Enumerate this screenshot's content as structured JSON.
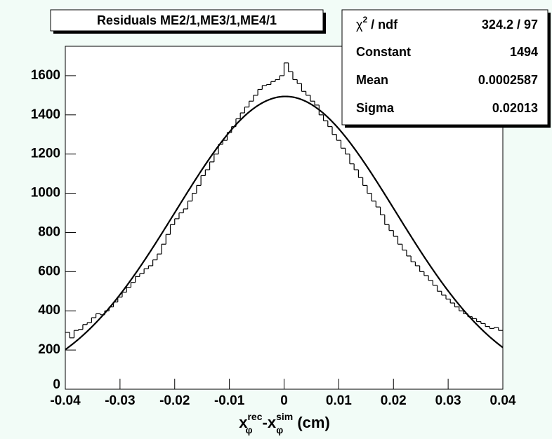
{
  "chart_data": {
    "type": "histogram",
    "title": "Residuals ME2/1,ME3/1,ME4/1",
    "x_label": {
      "main": "x",
      "sup1": "rec",
      "sub1": "φ",
      "mid": "-x",
      "sup2": "sim",
      "sub2": "φ",
      "unit": " (cm)"
    },
    "bins": [
      -0.04,
      -0.0392,
      -0.0384,
      -0.0376,
      -0.0368,
      -0.036,
      -0.0352,
      -0.0344,
      -0.0336,
      -0.0328,
      -0.032,
      -0.0312,
      -0.0304,
      -0.0296,
      -0.0288,
      -0.028,
      -0.0272,
      -0.0264,
      -0.0256,
      -0.0248,
      -0.024,
      -0.0232,
      -0.0224,
      -0.0216,
      -0.0208,
      -0.02,
      -0.0192,
      -0.0184,
      -0.0176,
      -0.0168,
      -0.016,
      -0.0152,
      -0.0144,
      -0.0136,
      -0.0128,
      -0.012,
      -0.0112,
      -0.0104,
      -0.0096,
      -0.0088,
      -0.008,
      -0.0072,
      -0.0064,
      -0.0056,
      -0.0048,
      -0.004,
      -0.0032,
      -0.0024,
      -0.0016,
      -0.0008,
      0,
      0.0008,
      0.0016,
      0.0024,
      0.0032,
      0.004,
      0.0048,
      0.0056,
      0.0064,
      0.0072,
      0.008,
      0.0088,
      0.0096,
      0.0104,
      0.0112,
      0.012,
      0.0128,
      0.0136,
      0.0144,
      0.0152,
      0.016,
      0.0168,
      0.0176,
      0.0184,
      0.0192,
      0.02,
      0.0208,
      0.0216,
      0.0224,
      0.0232,
      0.024,
      0.0248,
      0.0256,
      0.0264,
      0.0272,
      0.028,
      0.0288,
      0.0296,
      0.0304,
      0.0312,
      0.032,
      0.0328,
      0.0336,
      0.0344,
      0.0352,
      0.036,
      0.0368,
      0.0376,
      0.0384,
      0.0392,
      0.04
    ],
    "values": [
      290,
      262,
      300,
      305,
      330,
      340,
      365,
      385,
      380,
      400,
      420,
      445,
      470,
      495,
      520,
      545,
      575,
      590,
      615,
      630,
      660,
      690,
      740,
      790,
      840,
      870,
      900,
      920,
      960,
      1000,
      1040,
      1090,
      1120,
      1160,
      1200,
      1250,
      1270,
      1310,
      1340,
      1380,
      1410,
      1440,
      1470,
      1500,
      1530,
      1550,
      1555,
      1570,
      1580,
      1600,
      1665,
      1620,
      1580,
      1560,
      1520,
      1500,
      1470,
      1450,
      1400,
      1370,
      1340,
      1300,
      1270,
      1230,
      1200,
      1150,
      1120,
      1080,
      1040,
      1000,
      960,
      930,
      890,
      840,
      810,
      780,
      740,
      710,
      680,
      650,
      630,
      600,
      580,
      555,
      530,
      500,
      480,
      460,
      440,
      420,
      400,
      385,
      370,
      360,
      345,
      335,
      320,
      310,
      315,
      300
    ],
    "color": "#000000",
    "fit": {
      "type": "gaus",
      "constant": 1494,
      "mean": 0.0002587,
      "sigma": 0.02013,
      "color": "#000000"
    },
    "stats": {
      "chi2_label": {
        "chi": "χ",
        "sup": "2",
        "rest": " / ndf"
      },
      "chi2_value": "324.2 / 97",
      "constant_label": "Constant",
      "constant": 1494,
      "mean_label": "Mean",
      "mean": 0.0002587,
      "sigma_label": "Sigma",
      "sigma": 0.02013
    },
    "xlim": [
      -0.04,
      0.04
    ],
    "xticks": [
      -0.04,
      -0.03,
      -0.02,
      -0.01,
      0,
      0.01,
      0.02,
      0.03,
      0.04
    ],
    "ylim": [
      0,
      1750
    ],
    "yticks": [
      0,
      200,
      400,
      600,
      800,
      1000,
      1200,
      1400,
      1600
    ],
    "grid": false
  }
}
